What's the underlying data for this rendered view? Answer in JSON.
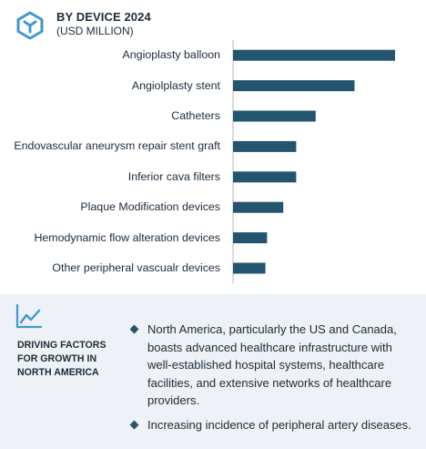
{
  "header": {
    "title": "BY DEVICE 2024",
    "subtitle": "(USD MILLION)",
    "logo_icon": "cube-icon"
  },
  "colors": {
    "bar": "#24556e",
    "text": "#1c2b3a",
    "panel_bg": "#eef1f5",
    "axis": "#b8b8b8"
  },
  "chart_data": {
    "type": "bar",
    "orientation": "horizontal",
    "title": "BY DEVICE 2024",
    "subtitle": "(USD MILLION)",
    "categories": [
      "Angioplasty balloon",
      "Angiolplasty stent",
      "Catheters",
      "Endovascular aneurysm repair stent graft",
      "Inferior cava filters",
      "Plaque Modification devices",
      "Hemodynamic flow alteration devices",
      "Other peripheral vascualr devices"
    ],
    "values": [
      100,
      75,
      51,
      39,
      39,
      31,
      21,
      20
    ],
    "value_scale": "relative (no axis values printed)",
    "xlim": [
      0,
      100
    ],
    "grid": false,
    "legend": "none"
  },
  "drivers": {
    "icon": "trend-line-icon",
    "heading": "DRIVING FACTORS FOR GROWTH IN NORTH AMERICA",
    "items": [
      "North America, particularly the US and Canada, boasts advanced healthcare infrastructure with well-established hospital systems, healthcare facilities, and extensive networks of healthcare providers.",
      "Increasing incidence of peripheral artery diseases."
    ]
  }
}
